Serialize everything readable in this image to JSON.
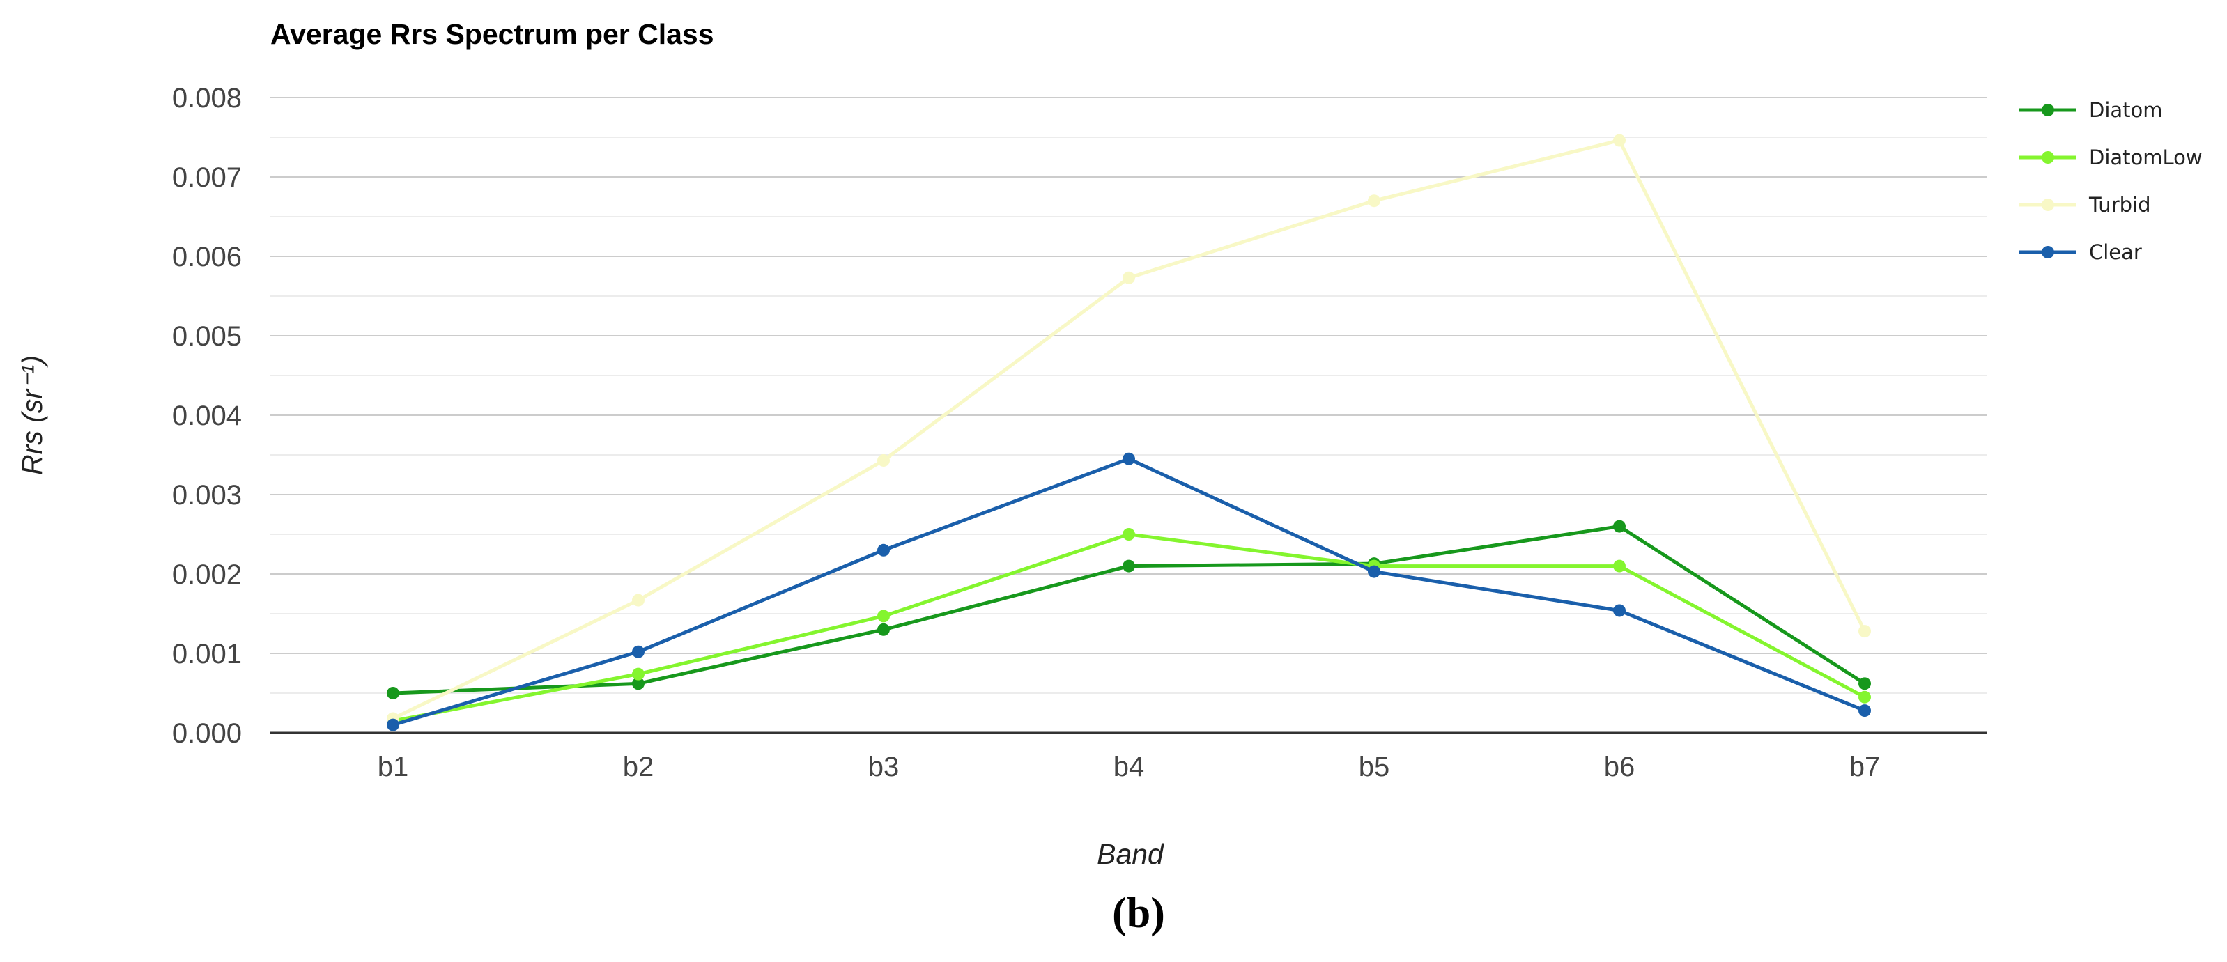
{
  "chart_data": {
    "type": "line",
    "title": "Average Rrs Spectrum per Class",
    "xlabel": "Band",
    "ylabel": "Rrs (sr⁻¹)",
    "categories": [
      "b1",
      "b2",
      "b3",
      "b4",
      "b5",
      "b6",
      "b7"
    ],
    "ylim": [
      0,
      0.008
    ],
    "yticks": [
      "0.000",
      "0.001",
      "0.002",
      "0.003",
      "0.004",
      "0.005",
      "0.006",
      "0.007",
      "0.008"
    ],
    "grid": true,
    "legend_position": "right",
    "series": [
      {
        "name": "Diatom",
        "color": "#17981c",
        "values": [
          0.0005,
          0.00062,
          0.0013,
          0.0021,
          0.00213,
          0.0026,
          0.00062
        ]
      },
      {
        "name": "DiatomLow",
        "color": "#84f52e",
        "values": [
          0.00015,
          0.00074,
          0.00147,
          0.0025,
          0.0021,
          0.0021,
          0.00045
        ]
      },
      {
        "name": "Turbid",
        "color": "#f8f8c6",
        "values": [
          0.00018,
          0.00167,
          0.00343,
          0.00573,
          0.0067,
          0.00746,
          0.00128
        ]
      },
      {
        "name": "Clear",
        "color": "#1a5fab",
        "values": [
          0.0001,
          0.00102,
          0.0023,
          0.00345,
          0.00203,
          0.00154,
          0.00028
        ]
      }
    ]
  },
  "caption": "(b)"
}
